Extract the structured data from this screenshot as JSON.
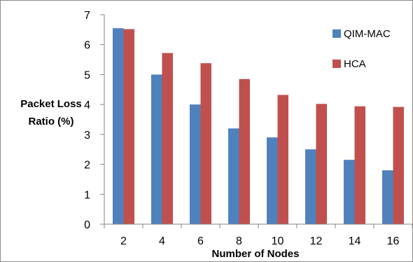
{
  "chart_data": {
    "type": "bar",
    "title": "",
    "xlabel": "Number of Nodes",
    "ylabel_lines": [
      "Packet Loss",
      "Ratio (%)"
    ],
    "categories": [
      "2",
      "4",
      "6",
      "8",
      "10",
      "12",
      "14",
      "16"
    ],
    "series": [
      {
        "name": "QIM-MAC",
        "color": "#4f81bd",
        "values": [
          6.55,
          5.0,
          4.0,
          3.2,
          2.9,
          2.5,
          2.15,
          1.8
        ]
      },
      {
        "name": "HCA",
        "color": "#c0504d",
        "values": [
          6.52,
          5.72,
          5.38,
          4.85,
          4.32,
          4.02,
          3.94,
          3.92
        ]
      }
    ],
    "ylim": [
      0,
      7
    ],
    "yticks": [
      0,
      1,
      2,
      3,
      4,
      5,
      6,
      7
    ],
    "grid": false,
    "legend_position": "top-right"
  }
}
